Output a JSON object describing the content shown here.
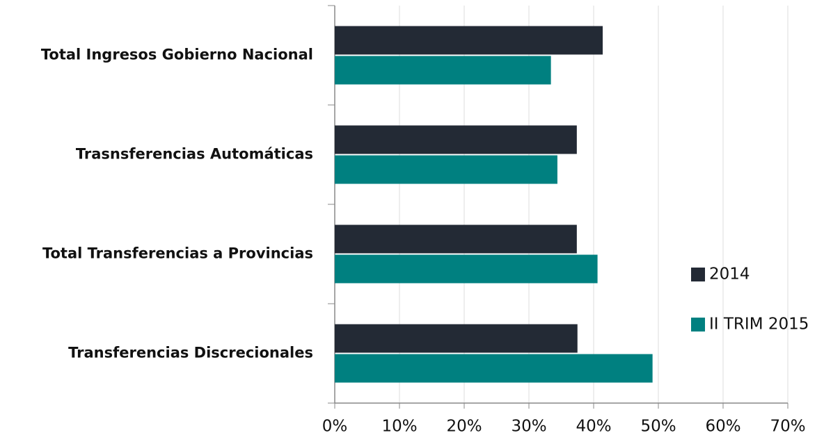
{
  "chart_data": {
    "type": "bar",
    "orientation": "horizontal",
    "categories": [
      "Total Ingresos Gobierno Nacional",
      "Trasnsferencias Automáticas",
      "Total Transferencias a Provincias",
      "Transferencias Discrecionales"
    ],
    "series": [
      {
        "name": "2014",
        "color": "#232a35",
        "values": [
          41.4,
          37.4,
          37.4,
          37.5
        ]
      },
      {
        "name": "II TRIM 2015",
        "color": "#008080",
        "values": [
          33.4,
          34.4,
          40.6,
          49.1
        ]
      }
    ],
    "xlim": [
      0,
      70
    ],
    "xticks": [
      {
        "value": 0,
        "label": "0%"
      },
      {
        "value": 10,
        "label": "10%"
      },
      {
        "value": 20,
        "label": "20%"
      },
      {
        "value": 30,
        "label": "30%"
      },
      {
        "value": 40,
        "label": "40%"
      },
      {
        "value": 50,
        "label": "50%"
      },
      {
        "value": 60,
        "label": "60%"
      },
      {
        "value": 70,
        "label": "70%"
      }
    ],
    "grid": true,
    "legend": "right"
  }
}
